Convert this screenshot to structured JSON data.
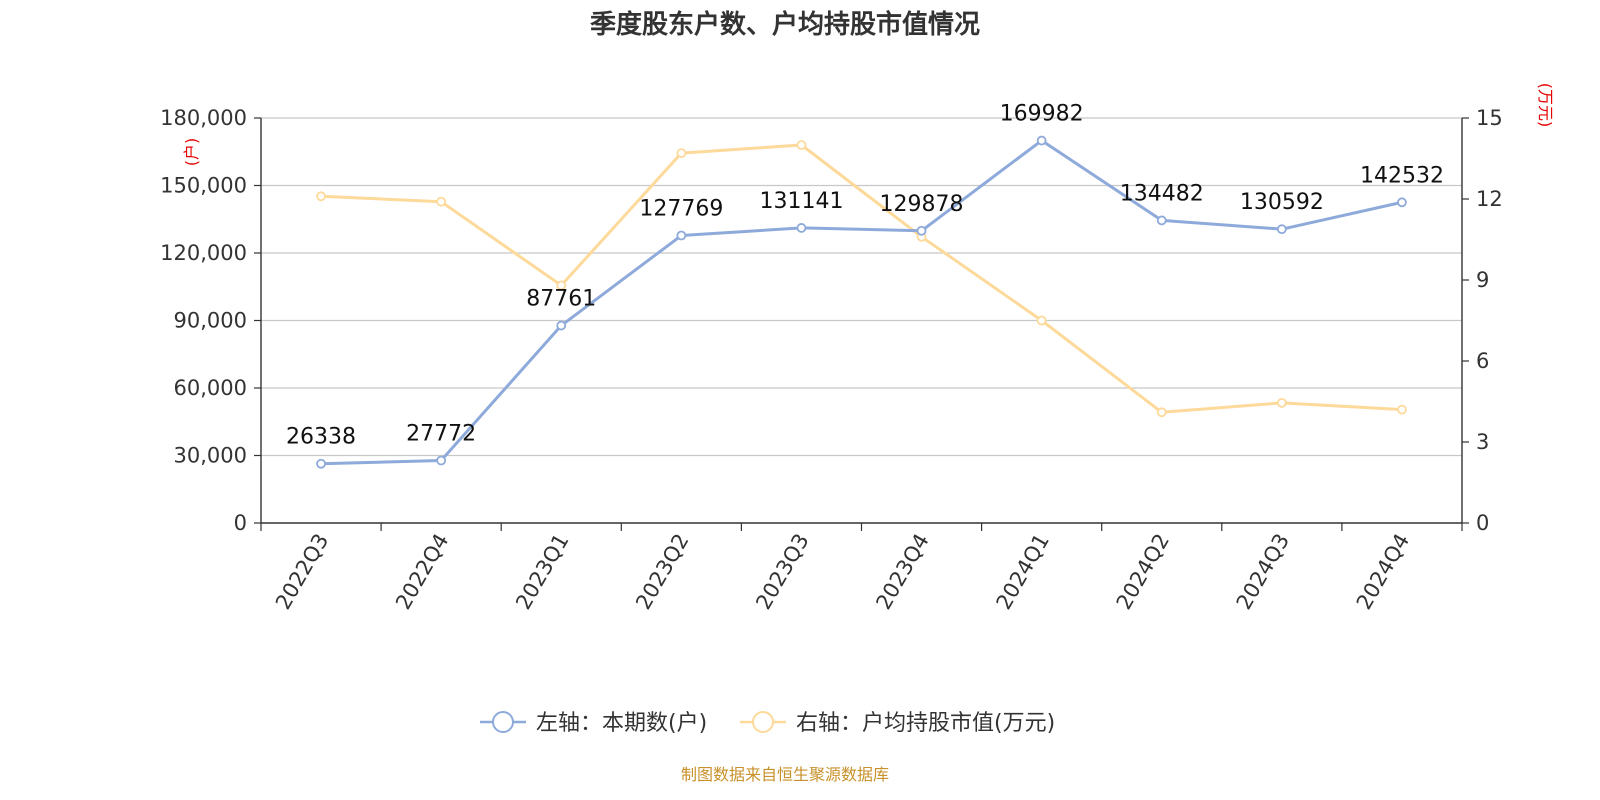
{
  "title": "季度股东户数、户均持股市值情况",
  "source": "制图数据来自恒生聚源数据库",
  "colors": {
    "left_series": "#8eaadb",
    "right_series": "#fdd99a",
    "unit": "#e60000",
    "source": "#c8912a"
  },
  "chart_data": {
    "type": "line",
    "title": "季度股东户数、户均持股市值情况",
    "categories": [
      "2022Q3",
      "2022Q4",
      "2023Q1",
      "2023Q2",
      "2023Q3",
      "2023Q4",
      "2024Q1",
      "2024Q2",
      "2024Q3",
      "2024Q4"
    ],
    "y_left": {
      "unit": "(户)",
      "range": [
        0,
        180000
      ],
      "ticks": [
        "0",
        "30,000",
        "60,000",
        "90,000",
        "120,000",
        "150,000",
        "180,000"
      ]
    },
    "y_right": {
      "unit": "(万元)",
      "range": [
        0,
        15
      ],
      "ticks": [
        "0",
        "3",
        "6",
        "9",
        "12",
        "15"
      ]
    },
    "grid": true,
    "legend_position": "bottom",
    "series": [
      {
        "name": "左轴：本期数(户)",
        "axis": "left",
        "values": [
          26338,
          27772,
          87761,
          127769,
          131141,
          129878,
          169982,
          134482,
          130592,
          142532
        ],
        "labels": [
          "26338",
          "27772",
          "87761",
          "127769",
          "131141",
          "129878",
          "169982",
          "134482",
          "130592",
          "142532"
        ]
      },
      {
        "name": "右轴：户均持股市值(万元)",
        "axis": "right",
        "values": [
          12.1,
          11.9,
          8.8,
          13.7,
          14.0,
          10.6,
          7.5,
          4.1,
          4.45,
          4.2
        ]
      }
    ]
  }
}
